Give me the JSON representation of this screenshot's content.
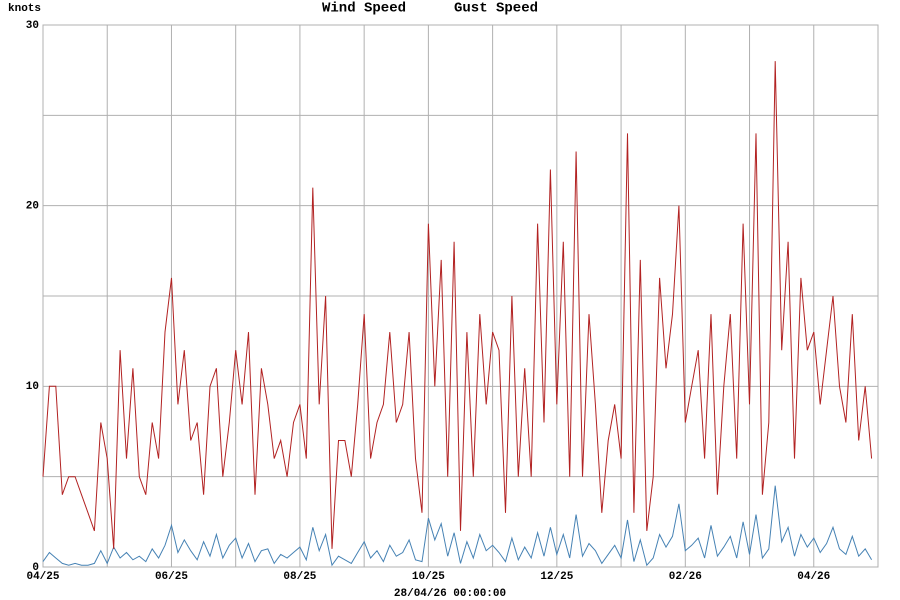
{
  "chart_data": {
    "type": "line",
    "x_label": "28/04/26 00:00:00",
    "y_label": "knots",
    "xlim": [
      0,
      13
    ],
    "xticks": [
      {
        "value": 0,
        "label": "04/25"
      },
      {
        "value": 2,
        "label": "06/25"
      },
      {
        "value": 4,
        "label": "08/25"
      },
      {
        "value": 6,
        "label": "10/25"
      },
      {
        "value": 8,
        "label": "12/25"
      },
      {
        "value": 10,
        "label": "02/26"
      },
      {
        "value": 12,
        "label": "04/26"
      }
    ],
    "xminor": [
      1,
      3,
      5,
      7,
      9,
      11
    ],
    "ylim": [
      0,
      30
    ],
    "yticks": [
      0,
      10,
      20,
      30
    ],
    "yminor": [
      5,
      15,
      25
    ],
    "grid": true,
    "x": [
      0,
      0.1,
      0.2,
      0.3,
      0.4,
      0.5,
      0.6,
      0.7,
      0.8,
      0.9,
      1,
      1.1,
      1.2,
      1.3,
      1.4,
      1.5,
      1.6,
      1.7,
      1.8,
      1.9,
      2,
      2.1,
      2.2,
      2.3,
      2.4,
      2.5,
      2.6,
      2.7,
      2.8,
      2.9,
      3,
      3.1,
      3.2,
      3.3,
      3.4,
      3.5,
      3.6,
      3.7,
      3.8,
      3.9,
      4,
      4.1,
      4.2,
      4.3,
      4.4,
      4.5,
      4.6,
      4.7,
      4.8,
      4.9,
      5,
      5.1,
      5.2,
      5.3,
      5.4,
      5.5,
      5.6,
      5.7,
      5.8,
      5.9,
      6,
      6.1,
      6.2,
      6.3,
      6.4,
      6.5,
      6.6,
      6.7,
      6.8,
      6.9,
      7,
      7.1,
      7.2,
      7.3,
      7.4,
      7.5,
      7.6,
      7.7,
      7.8,
      7.9,
      8,
      8.1,
      8.2,
      8.3,
      8.4,
      8.5,
      8.6,
      8.7,
      8.8,
      8.9,
      9,
      9.1,
      9.2,
      9.3,
      9.4,
      9.5,
      9.6,
      9.7,
      9.8,
      9.9,
      10,
      10.1,
      10.2,
      10.3,
      10.4,
      10.5,
      10.6,
      10.7,
      10.8,
      10.9,
      11,
      11.1,
      11.2,
      11.3,
      11.4,
      11.5,
      11.6,
      11.7,
      11.8,
      11.9,
      12,
      12.1,
      12.2,
      12.3,
      12.4,
      12.5,
      12.6,
      12.7,
      12.8,
      12.9
    ],
    "series": [
      {
        "name": "Wind Speed",
        "color": "#4682b4",
        "values": [
          0.3,
          0.8,
          0.5,
          0.2,
          0.1,
          0.2,
          0.1,
          0.1,
          0.2,
          0.9,
          0.2,
          1.1,
          0.5,
          0.8,
          0.4,
          0.6,
          0.3,
          1.0,
          0.5,
          1.2,
          2.3,
          0.8,
          1.5,
          0.9,
          0.4,
          1.4,
          0.6,
          1.8,
          0.5,
          1.2,
          1.6,
          0.5,
          1.3,
          0.3,
          0.9,
          1.0,
          0.2,
          0.7,
          0.5,
          0.8,
          1.1,
          0.4,
          2.2,
          0.9,
          1.8,
          0.1,
          0.6,
          0.4,
          0.2,
          0.8,
          1.4,
          0.5,
          0.9,
          0.3,
          1.2,
          0.6,
          0.8,
          1.5,
          0.4,
          0.3,
          2.7,
          1.5,
          2.4,
          0.6,
          1.9,
          0.2,
          1.4,
          0.5,
          1.8,
          0.9,
          1.2,
          0.8,
          0.3,
          1.6,
          0.4,
          1.1,
          0.5,
          1.9,
          0.6,
          2.2,
          0.7,
          1.8,
          0.5,
          2.9,
          0.6,
          1.3,
          0.9,
          0.2,
          0.7,
          1.2,
          0.5,
          2.6,
          0.3,
          1.5,
          0.1,
          0.5,
          1.8,
          1.1,
          1.7,
          3.5,
          0.9,
          1.2,
          1.6,
          0.5,
          2.3,
          0.6,
          1.1,
          1.7,
          0.5,
          2.5,
          0.7,
          2.9,
          0.5,
          1.0,
          4.5,
          1.4,
          2.2,
          0.6,
          1.8,
          1.1,
          1.6,
          0.8,
          1.3,
          2.2,
          1.0,
          0.7,
          1.7,
          0.6,
          1.0,
          0.4
        ]
      },
      {
        "name": "Gust Speed",
        "color": "#b22222",
        "values": [
          5,
          10,
          10,
          4,
          5,
          5,
          4,
          3,
          2,
          8,
          6,
          1,
          12,
          6,
          11,
          5,
          4,
          8,
          6,
          13,
          16,
          9,
          12,
          7,
          8,
          4,
          10,
          11,
          5,
          8,
          12,
          9,
          13,
          4,
          11,
          9,
          6,
          7,
          5,
          8,
          9,
          6,
          21,
          9,
          15,
          1,
          7,
          7,
          5,
          9,
          14,
          6,
          8,
          9,
          13,
          8,
          9,
          13,
          6,
          3,
          19,
          10,
          17,
          5,
          18,
          2,
          13,
          5,
          14,
          9,
          13,
          12,
          3,
          15,
          5,
          11,
          5,
          19,
          8,
          22,
          9,
          18,
          5,
          23,
          5,
          14,
          9,
          3,
          7,
          9,
          6,
          24,
          3,
          17,
          2,
          5,
          16,
          11,
          14,
          20,
          8,
          10,
          12,
          6,
          14,
          4,
          10,
          14,
          6,
          19,
          9,
          24,
          4,
          8,
          28,
          12,
          18,
          6,
          16,
          12,
          13,
          9,
          12,
          15,
          10,
          8,
          14,
          7,
          10,
          6
        ]
      }
    ]
  }
}
